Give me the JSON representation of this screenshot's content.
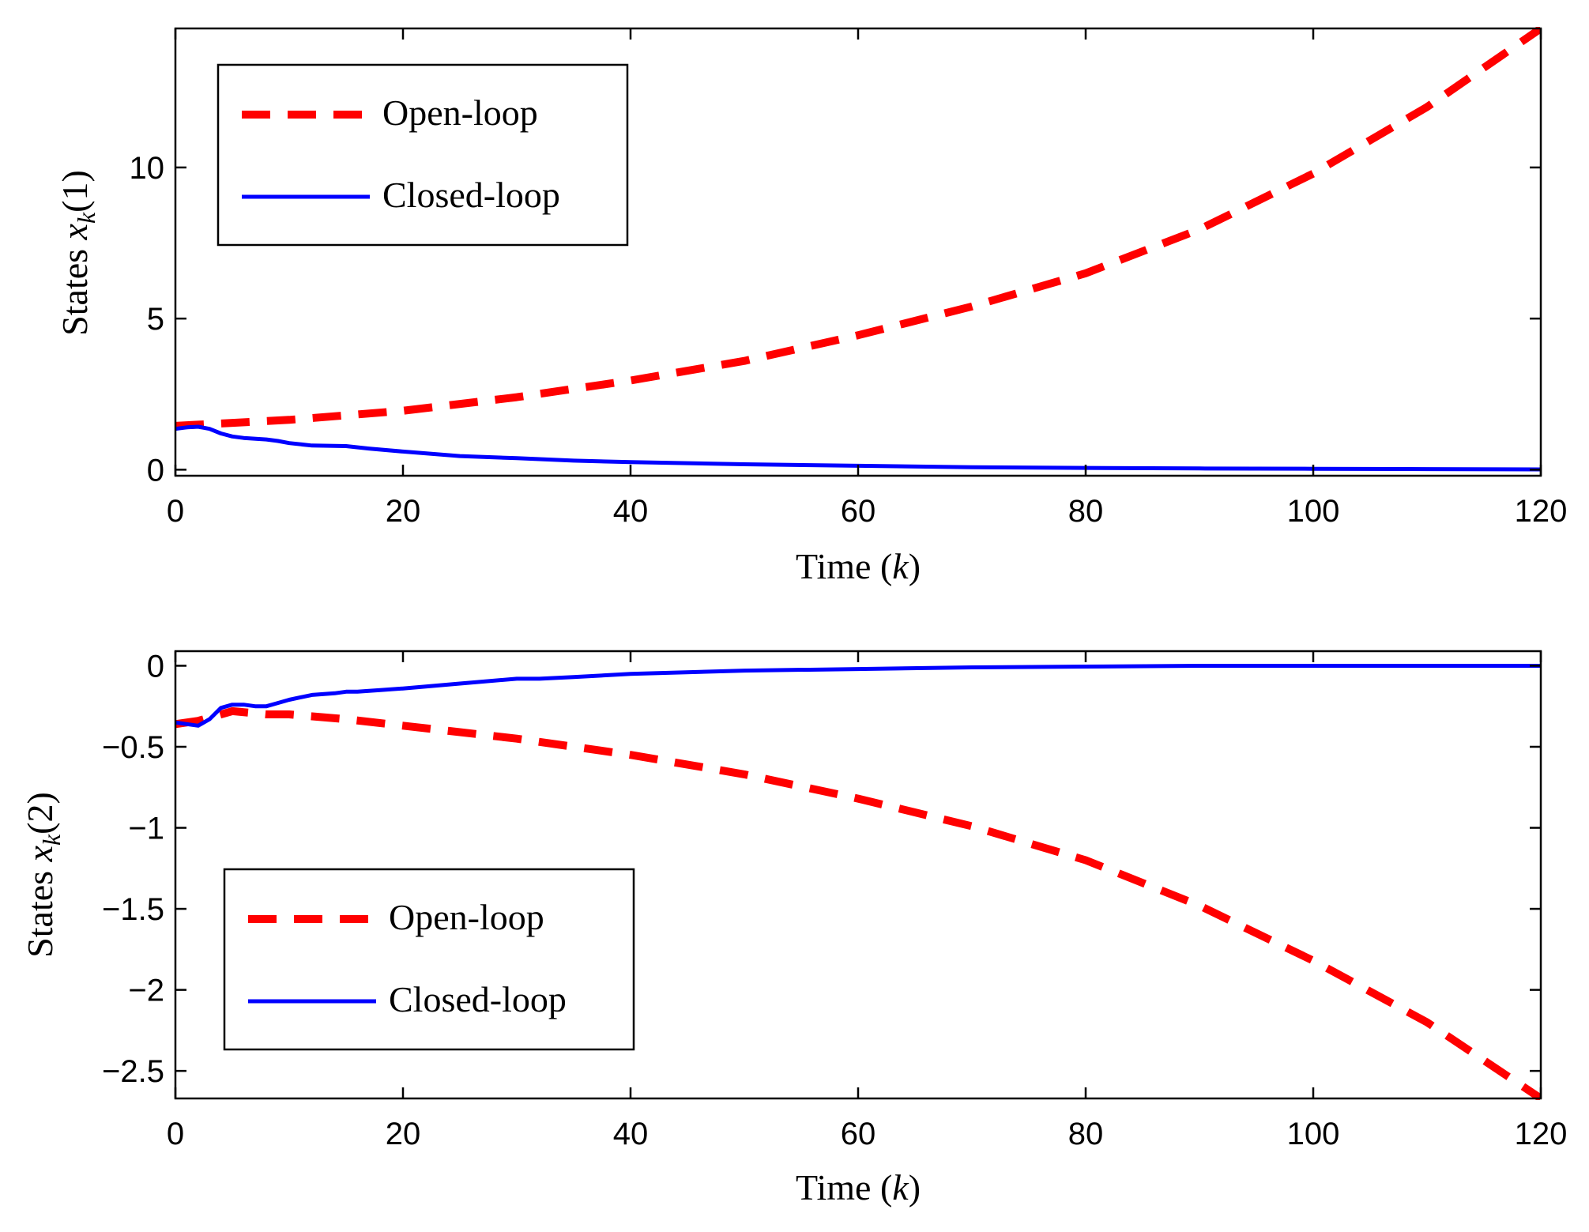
{
  "chart_data": [
    {
      "type": "line",
      "xlabel": "Time (k)",
      "ylabel": "States x_k(1)",
      "xlim": [
        0,
        120
      ],
      "ylim": [
        -0.2,
        14.6
      ],
      "xticks": [
        0,
        20,
        40,
        60,
        80,
        100,
        120
      ],
      "xtick_labels": [
        "0",
        "20",
        "40",
        "60",
        "80",
        "100",
        "120"
      ],
      "yticks": [
        0,
        5,
        10
      ],
      "ytick_labels": [
        "0",
        "5",
        "10"
      ],
      "legend_position": "top-left",
      "series": [
        {
          "name": "Open-loop",
          "style": "dashed",
          "color": "#ff0000",
          "x": [
            0,
            10,
            20,
            30,
            40,
            50,
            60,
            70,
            80,
            90,
            100,
            110,
            120
          ],
          "y": [
            1.45,
            1.65,
            1.95,
            2.4,
            2.95,
            3.6,
            4.45,
            5.4,
            6.5,
            7.95,
            9.8,
            12.0,
            14.6
          ]
        },
        {
          "name": "Closed-loop",
          "style": "solid",
          "color": "#0000ff",
          "x": [
            0,
            1,
            2,
            3,
            4,
            5,
            6,
            8,
            9,
            10,
            12,
            15,
            17,
            20,
            25,
            30,
            35,
            40,
            50,
            60,
            70,
            80,
            90,
            100,
            110,
            120
          ],
          "y": [
            1.35,
            1.4,
            1.42,
            1.35,
            1.2,
            1.1,
            1.05,
            1.0,
            0.95,
            0.88,
            0.8,
            0.78,
            0.7,
            0.6,
            0.45,
            0.38,
            0.3,
            0.25,
            0.18,
            0.13,
            0.08,
            0.06,
            0.04,
            0.03,
            0.02,
            0.01
          ]
        }
      ]
    },
    {
      "type": "line",
      "xlabel": "Time (k)",
      "ylabel": "States x_k(2)",
      "xlim": [
        0,
        120
      ],
      "ylim": [
        -2.67,
        0.09
      ],
      "xticks": [
        0,
        20,
        40,
        60,
        80,
        100,
        120
      ],
      "xtick_labels": [
        "0",
        "20",
        "40",
        "60",
        "80",
        "100",
        "120"
      ],
      "yticks": [
        0,
        -0.5,
        -1,
        -1.5,
        -2,
        -2.5
      ],
      "ytick_labels": [
        "0",
        "−0.5",
        "−1",
        "−1.5",
        "−2",
        "−2.5"
      ],
      "legend_position": "bottom-left",
      "series": [
        {
          "name": "Open-loop",
          "style": "dashed",
          "color": "#ff0000",
          "x": [
            0,
            2,
            5,
            8,
            10,
            15,
            20,
            30,
            40,
            50,
            60,
            70,
            80,
            90,
            100,
            110,
            120
          ],
          "y": [
            -0.36,
            -0.34,
            -0.28,
            -0.3,
            -0.3,
            -0.33,
            -0.37,
            -0.45,
            -0.55,
            -0.67,
            -0.82,
            -0.99,
            -1.2,
            -1.48,
            -1.82,
            -2.2,
            -2.67
          ]
        },
        {
          "name": "Closed-loop",
          "style": "solid",
          "color": "#0000ff",
          "x": [
            0,
            1,
            2,
            3,
            4,
            5,
            6,
            7,
            8,
            9,
            10,
            12,
            14,
            15,
            16,
            18,
            20,
            25,
            30,
            32,
            35,
            40,
            50,
            60,
            70,
            80,
            90,
            100,
            110,
            120
          ],
          "y": [
            -0.35,
            -0.36,
            -0.37,
            -0.33,
            -0.26,
            -0.24,
            -0.24,
            -0.25,
            -0.25,
            -0.23,
            -0.21,
            -0.18,
            -0.17,
            -0.16,
            -0.16,
            -0.15,
            -0.14,
            -0.11,
            -0.08,
            -0.08,
            -0.07,
            -0.05,
            -0.03,
            -0.02,
            -0.01,
            -0.005,
            0.0,
            0.0,
            0.0,
            0.0
          ]
        }
      ]
    }
  ],
  "subplots": [
    {
      "ylabel_main": "States ",
      "ylabel_var": "x",
      "ylabel_sub": "k",
      "ylabel_arg": "(1)",
      "xlabel_main": "Time (",
      "xlabel_var": "k",
      "xlabel_end": ")",
      "legend": {
        "entry1": "Open-loop",
        "entry2": "Closed-loop"
      }
    },
    {
      "ylabel_main": "States ",
      "ylabel_var": "x",
      "ylabel_sub": "k",
      "ylabel_arg": "(2)",
      "xlabel_main": "Time (",
      "xlabel_var": "k",
      "xlabel_end": ")",
      "legend": {
        "entry1": "Open-loop",
        "entry2": "Closed-loop"
      }
    }
  ]
}
